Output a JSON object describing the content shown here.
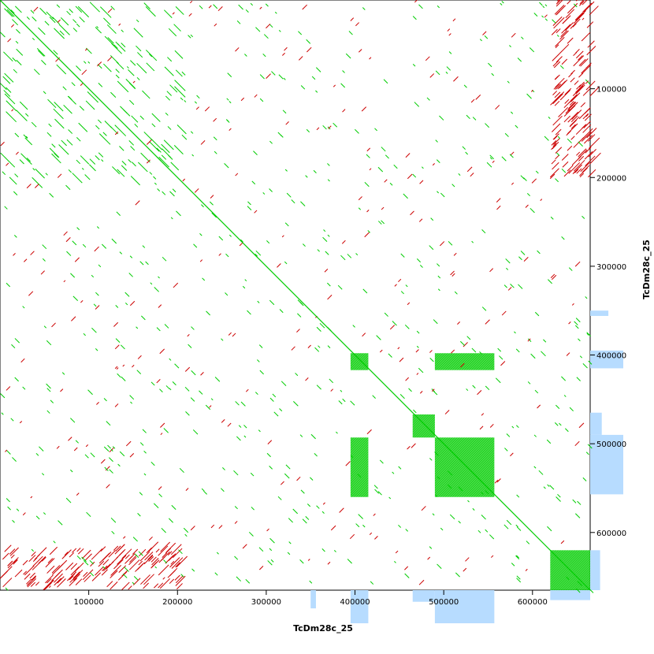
{
  "chart_data": {
    "type": "scatter",
    "plot_kind": "dot plot (self-alignment)",
    "title": "",
    "xlabel": "TcDm28c_25",
    "ylabel": "TcDm28c_25",
    "xlim": [
      0,
      665000
    ],
    "ylim": [
      0,
      665000
    ],
    "y_inverted": true,
    "x_ticks": [
      100000,
      200000,
      300000,
      400000,
      500000,
      600000
    ],
    "y_ticks": [
      100000,
      200000,
      300000,
      400000,
      500000,
      600000
    ],
    "grid": false,
    "colors": {
      "forward_match": "#00cc00",
      "reverse_match": "#cc0000",
      "density_track": "#b7dcff",
      "edge_density": "#ffd9b0"
    },
    "series": [
      {
        "strand": "forward",
        "color": "#00cc00",
        "main_diagonal": {
          "x": [
            0,
            665000
          ],
          "y": [
            0,
            665000
          ]
        },
        "dense_blocks": [
          {
            "x": [
              395000,
              415000
            ],
            "y": [
              398000,
              417000
            ]
          },
          {
            "x": [
              490000,
              557000
            ],
            "y": [
              398000,
              417000
            ]
          },
          {
            "x": [
              395000,
              415000
            ],
            "y": [
              493000,
              560000
            ]
          },
          {
            "x": [
              490000,
              557000
            ],
            "y": [
              493000,
              560000
            ]
          },
          {
            "x": [
              465000,
              490000
            ],
            "y": [
              467000,
              493000
            ]
          },
          {
            "x": [
              620000,
              665000
            ],
            "y": [
              620000,
              665000
            ]
          },
          {
            "x": [
              0,
              200000
            ],
            "y": [
              0,
              200000
            ]
          }
        ]
      },
      {
        "strand": "reverse",
        "color": "#cc0000",
        "dense_blocks": [
          {
            "x": [
              620000,
              665000
            ],
            "y": [
              0,
              200000
            ]
          },
          {
            "x": [
              0,
              200000
            ],
            "y": [
              620000,
              665000
            ]
          }
        ]
      }
    ],
    "density_track": {
      "bins": [
        {
          "start": 350000,
          "end": 356000,
          "value": 0.55
        },
        {
          "start": 395000,
          "end": 415000,
          "value": 1.0
        },
        {
          "start": 465000,
          "end": 490000,
          "value": 0.35
        },
        {
          "start": 490000,
          "end": 557000,
          "value": 1.0
        },
        {
          "start": 620000,
          "end": 665000,
          "value": 0.3
        }
      ]
    }
  }
}
